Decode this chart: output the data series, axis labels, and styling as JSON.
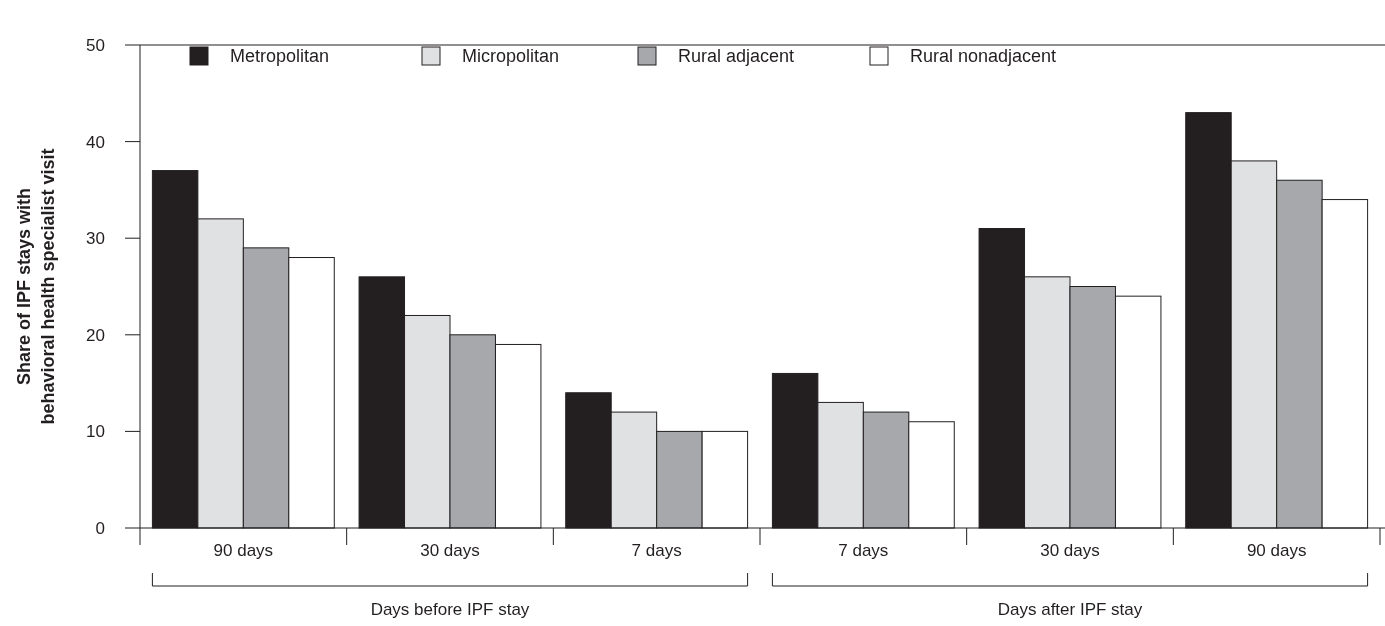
{
  "chart_data": {
    "type": "bar",
    "ylabel": "Share of IPF stays with\nbehavioral health specialist visit",
    "categories": [
      "90 days",
      "30 days",
      "7 days",
      "7 days",
      "30 days",
      "90 days"
    ],
    "series": [
      {
        "name": "Metropolitan",
        "color": "#231f20",
        "values": [
          37,
          26,
          14,
          16,
          31,
          43
        ]
      },
      {
        "name": "Micropolitan",
        "color": "#e0e1e3",
        "values": [
          32,
          22,
          12,
          13,
          26,
          38
        ]
      },
      {
        "name": "Rural adjacent",
        "color": "#a6a8ab",
        "values": [
          29,
          20,
          10,
          12,
          25,
          36
        ]
      },
      {
        "name": "Rural nonadjacent",
        "color": "#ffffff",
        "values": [
          28,
          19,
          10,
          11,
          24,
          34
        ]
      }
    ],
    "ylim": [
      0,
      50
    ],
    "yticks": [
      0,
      10,
      20,
      30,
      40,
      50
    ],
    "legend": "top left",
    "grid": false,
    "annotations": [
      "Days before IPF stay",
      "Days after IPF stay"
    ]
  }
}
